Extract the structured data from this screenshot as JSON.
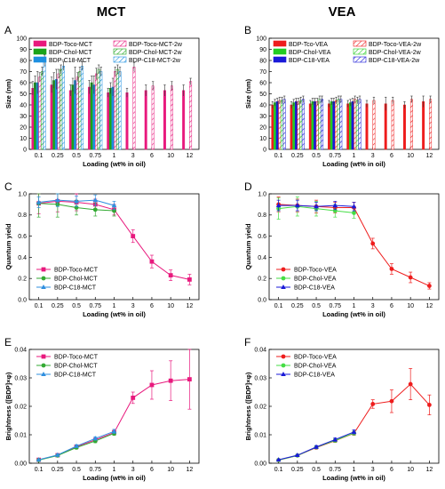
{
  "columns": [
    {
      "title": "MCT"
    },
    {
      "title": "VEA"
    }
  ],
  "chart_data": [
    {
      "panel": "A",
      "type": "bar",
      "xlabel": "Loading (wt% in oil)",
      "ylabel": "Size (nm)",
      "categories": [
        "0.1",
        "0.25",
        "0.5",
        "0.75",
        "1",
        "3",
        "6",
        "10",
        "12"
      ],
      "ylim": [
        0,
        100
      ],
      "yticks": [
        0,
        10,
        20,
        30,
        40,
        50,
        60,
        70,
        80,
        90,
        100
      ],
      "series": [
        {
          "name": "BDP-Toco-MCT",
          "color": "#e8197d",
          "fill": "solid",
          "values": [
            55,
            58,
            53,
            56,
            51,
            51,
            53,
            53,
            53
          ],
          "errors": [
            6,
            7,
            5,
            6,
            4,
            4,
            5,
            5,
            5
          ]
        },
        {
          "name": "BDP-Chol-MCT",
          "color": "#1aa31a",
          "fill": "solid",
          "values": [
            60,
            62,
            58,
            60,
            55,
            null,
            null,
            null,
            null
          ],
          "errors": [
            6,
            7,
            6,
            6,
            5,
            null,
            null,
            null,
            null
          ]
        },
        {
          "name": "BDP-C18-MCT",
          "color": "#1e8fe0",
          "fill": "solid",
          "values": [
            60,
            63,
            62,
            58,
            56,
            null,
            null,
            null,
            null
          ],
          "errors": [
            10,
            9,
            12,
            8,
            8,
            null,
            null,
            null,
            null
          ]
        },
        {
          "name": "BDP-Toco-MCT-2w",
          "color": "#e8197d",
          "fill": "hatch",
          "values": [
            65,
            68,
            65,
            68,
            70,
            74,
            57,
            57,
            61
          ],
          "errors": [
            4,
            4,
            4,
            5,
            4,
            4,
            4,
            4,
            3
          ]
        },
        {
          "name": "BDP-Chol-MCT-2w",
          "color": "#1aa31a",
          "fill": "hatch",
          "values": [
            70,
            72,
            70,
            72,
            72,
            null,
            null,
            null,
            null
          ],
          "errors": [
            4,
            4,
            4,
            4,
            4,
            null,
            null,
            null,
            null
          ]
        },
        {
          "name": "BDP-C18-MCT-2w",
          "color": "#1e8fe0",
          "fill": "hatch",
          "values": [
            80,
            75,
            75,
            70,
            70,
            null,
            null,
            null,
            null
          ],
          "errors": [
            5,
            4,
            4,
            4,
            4,
            null,
            null,
            null,
            null
          ]
        }
      ],
      "legend": "top"
    },
    {
      "panel": "B",
      "type": "bar",
      "xlabel": "Loading (wt% in oil)",
      "ylabel": "Size (nm)",
      "categories": [
        "0.1",
        "0.25",
        "0.5",
        "0.75",
        "1",
        "3",
        "6",
        "10",
        "12"
      ],
      "ylim": [
        0,
        100
      ],
      "yticks": [
        0,
        10,
        20,
        30,
        40,
        50,
        60,
        70,
        80,
        90,
        100
      ],
      "series": [
        {
          "name": "BDP-Tco-VEA",
          "color": "#ee1c1c",
          "fill": "solid",
          "values": [
            40,
            40,
            41,
            41,
            41,
            41,
            41,
            40,
            43
          ],
          "errors": [
            3,
            3,
            3,
            3,
            3,
            3,
            6,
            3,
            5
          ]
        },
        {
          "name": "BDP-Chol-VEA",
          "color": "#22cc22",
          "fill": "solid",
          "values": [
            42,
            42,
            43,
            43,
            42,
            null,
            null,
            null,
            null
          ],
          "errors": [
            3,
            3,
            3,
            3,
            3,
            null,
            null,
            null,
            null
          ]
        },
        {
          "name": "BDP-C18-VEA",
          "color": "#1a1ad8",
          "fill": "solid",
          "values": [
            43,
            43,
            43,
            43,
            43,
            null,
            null,
            null,
            null
          ],
          "errors": [
            3,
            3,
            3,
            3,
            3,
            null,
            null,
            null,
            null
          ]
        },
        {
          "name": "BDP-Toco-VEA-2w",
          "color": "#ee1c1c",
          "fill": "hatch",
          "values": [
            44,
            43,
            43,
            44,
            45,
            44,
            44,
            45,
            45
          ],
          "errors": [
            3,
            3,
            3,
            3,
            3,
            3,
            3,
            3,
            3
          ]
        },
        {
          "name": "BDP-Chol-VEA-2w",
          "color": "#22cc22",
          "fill": "hatch",
          "values": [
            44,
            44,
            45,
            45,
            44,
            null,
            null,
            null,
            null
          ],
          "errors": [
            3,
            3,
            3,
            3,
            3,
            null,
            null,
            null,
            null
          ]
        },
        {
          "name": "BDP-C18-VEA-2w",
          "color": "#1a1ad8",
          "fill": "hatch",
          "values": [
            45,
            45,
            45,
            45,
            45,
            null,
            null,
            null,
            null
          ],
          "errors": [
            3,
            3,
            3,
            3,
            3,
            null,
            null,
            null,
            null
          ]
        }
      ],
      "legend": "top"
    },
    {
      "panel": "C",
      "type": "line",
      "xlabel": "Loading (wt% in oil)",
      "ylabel": "Quantum yield",
      "categories": [
        "0.1",
        "0.25",
        "0.5",
        "0.75",
        "1",
        "3",
        "6",
        "10",
        "12"
      ],
      "ylim": [
        0,
        1.0
      ],
      "yticks": [
        0.0,
        0.2,
        0.4,
        0.6,
        0.8,
        1.0
      ],
      "series": [
        {
          "name": "BDP-Toco-MCT",
          "color": "#e8197d",
          "marker": "square",
          "values": [
            0.91,
            0.93,
            0.92,
            0.9,
            0.85,
            0.6,
            0.36,
            0.23,
            0.19
          ],
          "errors": [
            0.1,
            0.1,
            0.08,
            0.05,
            0.05,
            0.06,
            0.06,
            0.05,
            0.05
          ]
        },
        {
          "name": "BDP-Chol-MCT",
          "color": "#33aa33",
          "marker": "circle",
          "values": [
            0.91,
            0.9,
            0.87,
            0.85,
            0.84,
            null,
            null,
            null,
            null
          ],
          "errors": [
            0.13,
            0.12,
            0.07,
            0.06,
            0.05,
            null,
            null,
            null,
            null
          ]
        },
        {
          "name": "BDP-C18-MCT",
          "color": "#2f8fdf",
          "marker": "triangle",
          "values": [
            0.92,
            0.94,
            0.93,
            0.94,
            0.89,
            null,
            null,
            null,
            null
          ],
          "errors": [
            0.05,
            0.06,
            0.05,
            0.05,
            0.04,
            null,
            null,
            null,
            null
          ]
        }
      ],
      "legend": "bottom-left"
    },
    {
      "panel": "D",
      "type": "line",
      "xlabel": "Loading (wt% in oil)",
      "ylabel": "Quantum yield",
      "categories": [
        "0.1",
        "0.25",
        "0.5",
        "0.75",
        "1",
        "3",
        "6",
        "10",
        "12"
      ],
      "ylim": [
        0,
        1.0
      ],
      "yticks": [
        0.0,
        0.2,
        0.4,
        0.6,
        0.8,
        1.0
      ],
      "series": [
        {
          "name": "BDP-Toco-VEA",
          "color": "#ee1c1c",
          "marker": "circle",
          "values": [
            0.9,
            0.89,
            0.88,
            0.87,
            0.87,
            0.53,
            0.29,
            0.21,
            0.13
          ],
          "errors": [
            0.07,
            0.06,
            0.06,
            0.05,
            0.05,
            0.05,
            0.05,
            0.05,
            0.03
          ]
        },
        {
          "name": "BDP-Chol-VEA",
          "color": "#44dd44",
          "marker": "circle",
          "values": [
            0.86,
            0.88,
            0.86,
            0.84,
            0.82,
            null,
            null,
            null,
            null
          ],
          "errors": [
            0.1,
            0.09,
            0.07,
            0.06,
            0.05,
            null,
            null,
            null,
            null
          ]
        },
        {
          "name": "BDP-C18-VEA",
          "color": "#1a1ad8",
          "marker": "triangle",
          "values": [
            0.89,
            0.89,
            0.88,
            0.89,
            0.88,
            null,
            null,
            null,
            null
          ],
          "errors": [
            0.05,
            0.05,
            0.04,
            0.04,
            0.04,
            null,
            null,
            null,
            null
          ]
        }
      ],
      "legend": "bottom-left"
    },
    {
      "panel": "E",
      "type": "line",
      "xlabel": "Loading (wt% in oil)",
      "ylabel": "Brightness ([BDP]×φ)",
      "categories": [
        "0.1",
        "0.25",
        "0.5",
        "0.75",
        "1",
        "3",
        "6",
        "10",
        "12"
      ],
      "ylim": [
        0,
        0.04
      ],
      "yticks": [
        0.0,
        0.01,
        0.02,
        0.03,
        0.04
      ],
      "series": [
        {
          "name": "BDP-Toco-MCT",
          "color": "#e8197d",
          "marker": "square",
          "values": [
            0.0012,
            0.0028,
            0.0058,
            0.0082,
            0.0108,
            0.023,
            0.0275,
            0.029,
            0.0295
          ],
          "errors": [
            0.0002,
            0.0003,
            0.0005,
            0.0006,
            0.0008,
            0.002,
            0.005,
            0.007,
            0.0105
          ]
        },
        {
          "name": "BDP-Chol-MCT",
          "color": "#33aa33",
          "marker": "circle",
          "values": [
            0.0011,
            0.0027,
            0.0055,
            0.0078,
            0.0105,
            null,
            null,
            null,
            null
          ],
          "errors": [
            0.0002,
            0.0003,
            0.0005,
            0.0006,
            0.0007,
            null,
            null,
            null,
            null
          ]
        },
        {
          "name": "BDP-C18-MCT",
          "color": "#2f8fdf",
          "marker": "triangle",
          "values": [
            0.0012,
            0.0029,
            0.006,
            0.0087,
            0.0112,
            null,
            null,
            null,
            null
          ],
          "errors": [
            0.0002,
            0.0003,
            0.0005,
            0.0006,
            0.0007,
            null,
            null,
            null,
            null
          ]
        }
      ],
      "legend": "top-left"
    },
    {
      "panel": "F",
      "type": "line",
      "xlabel": "Loading (wt% in oil)",
      "ylabel": "Brightness ([BDP]×φ)",
      "categories": [
        "0.1",
        "0.25",
        "0.5",
        "0.75",
        "1",
        "3",
        "6",
        "10",
        "12"
      ],
      "ylim": [
        0,
        0.04
      ],
      "yticks": [
        0.0,
        0.01,
        0.02,
        0.03,
        0.04
      ],
      "series": [
        {
          "name": "BDP-Toco-VEA",
          "color": "#ee1c1c",
          "marker": "circle",
          "values": [
            0.0011,
            0.0027,
            0.0055,
            0.0079,
            0.0105,
            0.0208,
            0.0218,
            0.0278,
            0.0205
          ],
          "errors": [
            0.0002,
            0.0003,
            0.0005,
            0.0006,
            0.0007,
            0.0015,
            0.004,
            0.0055,
            0.0035
          ]
        },
        {
          "name": "BDP-Chol-VEA",
          "color": "#44dd44",
          "marker": "circle",
          "values": [
            0.0011,
            0.0027,
            0.0056,
            0.008,
            0.0106,
            null,
            null,
            null,
            null
          ],
          "errors": [
            0.0002,
            0.0003,
            0.0005,
            0.0006,
            0.0007,
            null,
            null,
            null,
            null
          ]
        },
        {
          "name": "BDP-C18-VEA",
          "color": "#1a1ad8",
          "marker": "triangle",
          "values": [
            0.0012,
            0.0028,
            0.0057,
            0.0083,
            0.011,
            null,
            null,
            null,
            null
          ],
          "errors": [
            0.0002,
            0.0003,
            0.0005,
            0.0006,
            0.0007,
            null,
            null,
            null,
            null
          ]
        }
      ],
      "legend": "top-left"
    }
  ]
}
